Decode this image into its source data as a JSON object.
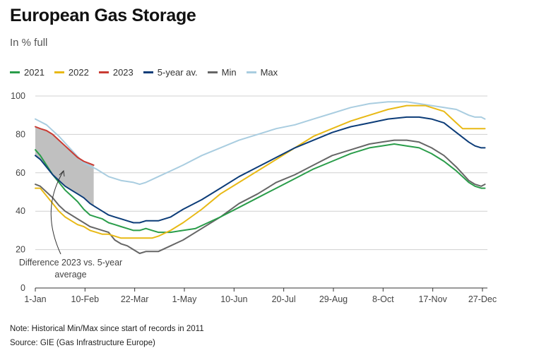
{
  "title": "European Gas Storage",
  "subtitle": "In % full",
  "note": "Note: Historical Min/Max since start of records in 2011",
  "source": "Source: GIE (Gas Infrastructure Europe)",
  "chart_data": {
    "type": "line",
    "title": "European Gas Storage",
    "ylabel": "In % full",
    "xlim": [
      1,
      365
    ],
    "ylim": [
      0,
      100
    ],
    "yticks": [
      0,
      20,
      40,
      60,
      80,
      100
    ],
    "xticks": [
      {
        "day": 1,
        "label": "1-Jan"
      },
      {
        "day": 41,
        "label": "10-Feb"
      },
      {
        "day": 81,
        "label": "22-Mar"
      },
      {
        "day": 121,
        "label": "1-May"
      },
      {
        "day": 161,
        "label": "10-Jun"
      },
      {
        "day": 201,
        "label": "20-Jul"
      },
      {
        "day": 241,
        "label": "29-Aug"
      },
      {
        "day": 281,
        "label": "8-Oct"
      },
      {
        "day": 321,
        "label": "17-Nov"
      },
      {
        "day": 361,
        "label": "27-Dec"
      }
    ],
    "series": [
      {
        "name": "Max",
        "color": "#a9cde0",
        "x": [
          1,
          10,
          20,
          30,
          40,
          50,
          60,
          70,
          80,
          85,
          90,
          100,
          110,
          120,
          135,
          150,
          165,
          180,
          195,
          210,
          225,
          240,
          255,
          270,
          285,
          300,
          310,
          320,
          330,
          340,
          350,
          355,
          360,
          363
        ],
        "values": [
          88,
          85,
          79,
          72,
          65,
          62,
          58,
          56,
          55,
          54,
          55,
          58,
          61,
          64,
          69,
          73,
          77,
          80,
          83,
          85,
          88,
          91,
          94,
          96,
          97,
          97,
          96,
          95,
          94,
          93,
          90,
          89,
          89,
          88
        ]
      },
      {
        "name": "Min",
        "color": "#666666",
        "x": [
          1,
          5,
          10,
          15,
          20,
          25,
          30,
          35,
          40,
          45,
          50,
          55,
          60,
          65,
          70,
          75,
          80,
          85,
          90,
          95,
          100,
          110,
          120,
          135,
          150,
          165,
          180,
          195,
          210,
          225,
          240,
          255,
          270,
          280,
          290,
          300,
          310,
          320,
          330,
          340,
          350,
          355,
          360,
          363
        ],
        "values": [
          54,
          53,
          50,
          47,
          43,
          40,
          38,
          36,
          34,
          32,
          31,
          30,
          29,
          25,
          23,
          22,
          20,
          18,
          19,
          19,
          19,
          22,
          25,
          31,
          37,
          44,
          49,
          55,
          59,
          64,
          69,
          72,
          75,
          76,
          77,
          77,
          76,
          73,
          69,
          63,
          56,
          54,
          53,
          54
        ]
      },
      {
        "name": "2021",
        "color": "#2a9d4a",
        "x": [
          1,
          5,
          10,
          15,
          20,
          25,
          30,
          35,
          40,
          45,
          50,
          55,
          60,
          65,
          70,
          75,
          80,
          85,
          90,
          95,
          100,
          110,
          120,
          130,
          140,
          150,
          165,
          180,
          195,
          210,
          225,
          240,
          255,
          270,
          280,
          290,
          300,
          310,
          320,
          330,
          340,
          350,
          355,
          360,
          363
        ],
        "values": [
          72,
          69,
          64,
          59,
          55,
          51,
          48,
          45,
          41,
          38,
          37,
          36,
          34,
          33,
          32,
          31,
          30,
          30,
          31,
          30,
          29,
          29,
          30,
          31,
          34,
          37,
          42,
          47,
          52,
          57,
          62,
          66,
          70,
          73,
          74,
          75,
          74,
          73,
          70,
          66,
          61,
          55,
          53,
          52,
          52
        ]
      },
      {
        "name": "2022",
        "color": "#e8b915",
        "x": [
          1,
          5,
          10,
          15,
          20,
          25,
          30,
          35,
          40,
          45,
          50,
          55,
          60,
          65,
          70,
          75,
          80,
          85,
          90,
          95,
          100,
          110,
          120,
          135,
          150,
          165,
          180,
          195,
          210,
          225,
          240,
          255,
          270,
          285,
          300,
          310,
          315,
          320,
          330,
          340,
          345,
          350,
          355,
          360,
          363
        ],
        "values": [
          52,
          52,
          48,
          44,
          40,
          37,
          35,
          33,
          32,
          30,
          29,
          28,
          28,
          27,
          26,
          26,
          26,
          26,
          26,
          26,
          27,
          30,
          34,
          41,
          49,
          55,
          61,
          67,
          73,
          79,
          83,
          87,
          90,
          93,
          95,
          95,
          95,
          94,
          92,
          86,
          83,
          83,
          83,
          83,
          83
        ]
      },
      {
        "name": "5-year av.",
        "color": "#0c3c78",
        "x": [
          1,
          5,
          10,
          15,
          20,
          25,
          30,
          35,
          40,
          45,
          50,
          55,
          60,
          65,
          70,
          75,
          80,
          85,
          90,
          95,
          100,
          110,
          120,
          135,
          150,
          165,
          180,
          195,
          210,
          225,
          240,
          255,
          270,
          285,
          300,
          310,
          320,
          330,
          340,
          350,
          355,
          360,
          363
        ],
        "values": [
          69,
          67,
          63,
          59,
          56,
          53,
          51,
          49,
          47,
          44,
          42,
          40,
          38,
          37,
          36,
          35,
          34,
          34,
          35,
          35,
          35,
          37,
          41,
          46,
          52,
          58,
          63,
          68,
          73,
          77,
          81,
          84,
          86,
          88,
          89,
          89,
          88,
          86,
          81,
          76,
          74,
          73,
          73
        ]
      },
      {
        "name": "2023",
        "color": "#c93b33",
        "x": [
          1,
          5,
          10,
          15,
          20,
          25,
          30,
          35,
          40,
          44,
          48
        ],
        "values": [
          84,
          83,
          82,
          80,
          77,
          74,
          71,
          68,
          66,
          65,
          64
        ]
      }
    ],
    "shaded_region": {
      "label": "Difference 2023 vs. 5-year average",
      "x_end": 48,
      "color": "#c0c0c0"
    },
    "annotation": {
      "text_line1": "Difference 2023 vs. 5-year",
      "text_line2": "average"
    }
  },
  "colors": {
    "axis": "#333333",
    "grid": "#d0d0d0"
  }
}
